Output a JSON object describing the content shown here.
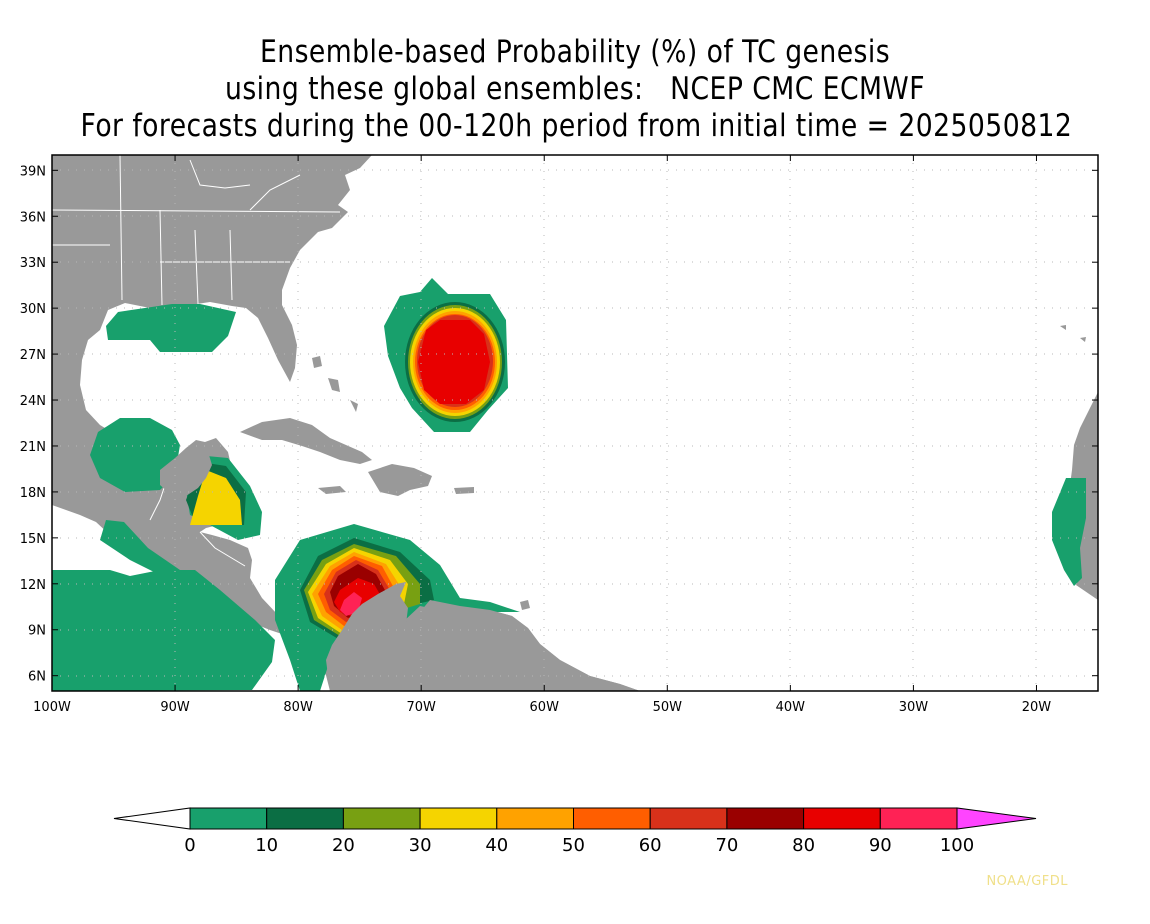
{
  "title": {
    "line1": "Ensemble-based Probability (%) of TC genesis",
    "line2": "using these global ensembles:   NCEP CMC ECMWF",
    "line3": "For forecasts during the 00-120h period from initial time = 2025050812"
  },
  "map": {
    "lon_range": [
      -100,
      -15
    ],
    "lat_range": [
      5,
      40
    ],
    "lat_ticks": [
      "39N",
      "36N",
      "33N",
      "30N",
      "27N",
      "24N",
      "21N",
      "18N",
      "15N",
      "12N",
      "9N",
      "6N"
    ],
    "lat_tick_values": [
      39,
      36,
      33,
      30,
      27,
      24,
      21,
      18,
      15,
      12,
      9,
      6
    ],
    "lon_ticks": [
      "100W",
      "90W",
      "80W",
      "70W",
      "60W",
      "50W",
      "40W",
      "30W",
      "20W"
    ],
    "lon_tick_values": [
      -100,
      -90,
      -80,
      -70,
      -60,
      -50,
      -40,
      -30,
      -20
    ],
    "land_color": "#999999",
    "ocean_color": "#ffffff",
    "grid": "dotted"
  },
  "colorbar": {
    "labels": [
      "0",
      "10",
      "20",
      "30",
      "40",
      "50",
      "60",
      "70",
      "80",
      "90",
      "100"
    ],
    "colors": [
      "#ffffff",
      "#18a06c",
      "#0b6e44",
      "#78a012",
      "#f5d400",
      "#ffa200",
      "#ff5e00",
      "#d8311a",
      "#9a0000",
      "#e80000",
      "#ff2255",
      "#ff44ff"
    ]
  },
  "credit": "NOAA/GFDL"
}
